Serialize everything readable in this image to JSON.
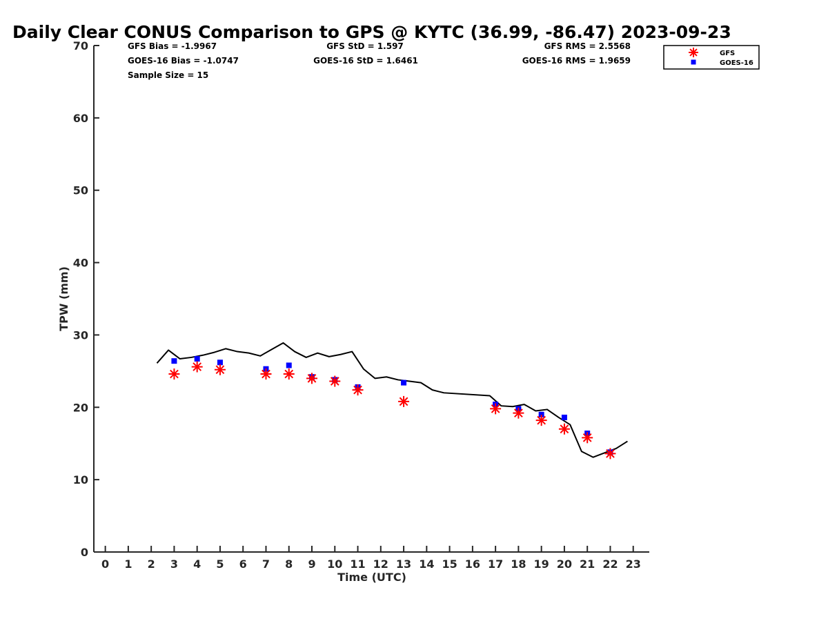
{
  "chart_data": {
    "type": "scatter",
    "title": "Daily Clear CONUS Comparison to GPS @ KYTC (36.99, -86.47) 2023-09-23",
    "xlabel": "Time (UTC)",
    "ylabel": "TPW (mm)",
    "xlim": [
      -0.5,
      23.7
    ],
    "ylim": [
      0,
      70
    ],
    "xticks": [
      0,
      1,
      2,
      3,
      4,
      5,
      6,
      7,
      8,
      9,
      10,
      11,
      12,
      13,
      14,
      15,
      16,
      17,
      18,
      19,
      20,
      21,
      22,
      23
    ],
    "yticks": [
      0,
      10,
      20,
      30,
      40,
      50,
      60,
      70
    ],
    "grid": false,
    "legend_position": "top-right",
    "stats": {
      "gfs_bias": "GFS Bias = -1.9967",
      "goes_bias": "GOES-16 Bias = -1.0747",
      "sample_size": "Sample Size = 15",
      "gfs_std": "GFS StD = 1.597",
      "goes_std": "GOES-16 StD = 1.6461",
      "gfs_rms": "GFS RMS = 2.5568",
      "goes_rms": "GOES-16 RMS = 1.9659"
    },
    "gps_line": {
      "color": "#000000",
      "x": [
        2.25,
        2.75,
        3.25,
        3.75,
        4.25,
        4.75,
        5.25,
        5.75,
        6.25,
        6.75,
        7.25,
        7.75,
        8.25,
        8.75,
        9.25,
        9.75,
        10.25,
        10.75,
        11.25,
        11.75,
        12.25,
        12.75,
        13.25,
        13.75,
        14.25,
        14.75,
        16.75,
        17.25,
        17.75,
        18.25,
        18.75,
        19.25,
        19.75,
        20.25,
        20.75,
        21.25,
        21.75,
        22.25,
        22.75
      ],
      "y": [
        26.1,
        27.9,
        26.7,
        26.9,
        27.2,
        27.6,
        28.1,
        27.7,
        27.5,
        27.1,
        28.0,
        28.9,
        27.7,
        26.9,
        27.5,
        27.0,
        27.3,
        27.7,
        25.3,
        24.0,
        24.2,
        23.8,
        23.6,
        23.4,
        22.4,
        22.0,
        21.6,
        20.2,
        20.1,
        20.4,
        19.5,
        19.7,
        18.6,
        17.6,
        13.9,
        13.1,
        13.7,
        14.3,
        15.3
      ]
    },
    "series": [
      {
        "name": "GFS",
        "marker": "asterisk",
        "color": "#ff0000",
        "x": [
          3,
          4,
          5,
          7,
          8,
          9,
          10,
          11,
          13,
          17,
          18,
          19,
          20,
          21,
          22
        ],
        "y": [
          24.6,
          25.6,
          25.2,
          24.6,
          24.6,
          24.0,
          23.6,
          22.4,
          20.8,
          19.8,
          19.2,
          18.2,
          17.0,
          15.8,
          13.6
        ]
      },
      {
        "name": "GOES-16",
        "marker": "square",
        "color": "#0000ff",
        "x": [
          3,
          4,
          5,
          7,
          8,
          9,
          10,
          11,
          13,
          17,
          18,
          19,
          20,
          21,
          22
        ],
        "y": [
          26.4,
          26.7,
          26.2,
          25.3,
          25.8,
          24.2,
          23.8,
          22.8,
          23.4,
          20.4,
          19.8,
          19.0,
          18.6,
          16.4,
          13.8
        ]
      }
    ]
  }
}
